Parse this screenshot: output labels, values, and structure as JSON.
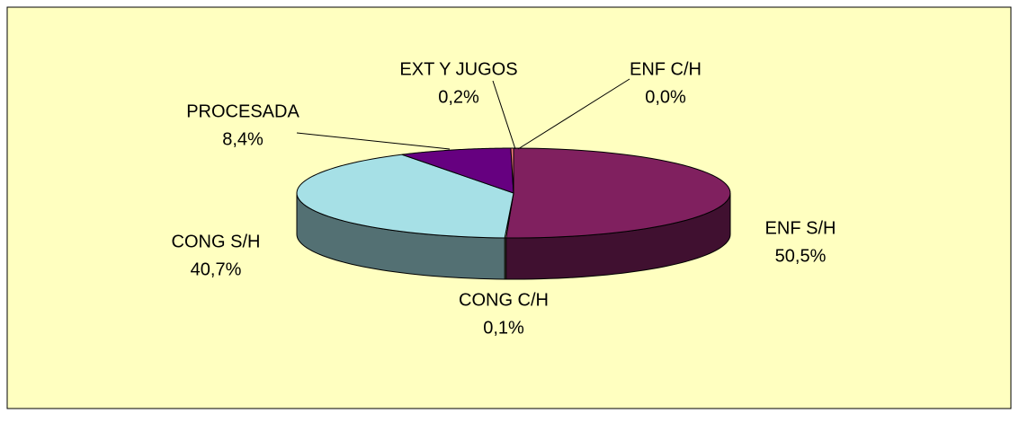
{
  "chart_data": {
    "type": "pie3d",
    "categories": [
      "ENF S/H",
      "CONG C/H",
      "CONG S/H",
      "PROCESADA",
      "EXT Y JUGOS",
      "ENF C/H"
    ],
    "values": [
      50.5,
      0.1,
      40.7,
      8.4,
      0.2,
      0.0
    ],
    "value_labels": [
      "50,5%",
      "0,1%",
      "40,7%",
      "8,4%",
      "0,2%",
      "0,0%"
    ],
    "colors": [
      "#80205f",
      "#ffffcc",
      "#a6e0e6",
      "#660080",
      "#ff8080",
      "#ffcc99"
    ]
  }
}
